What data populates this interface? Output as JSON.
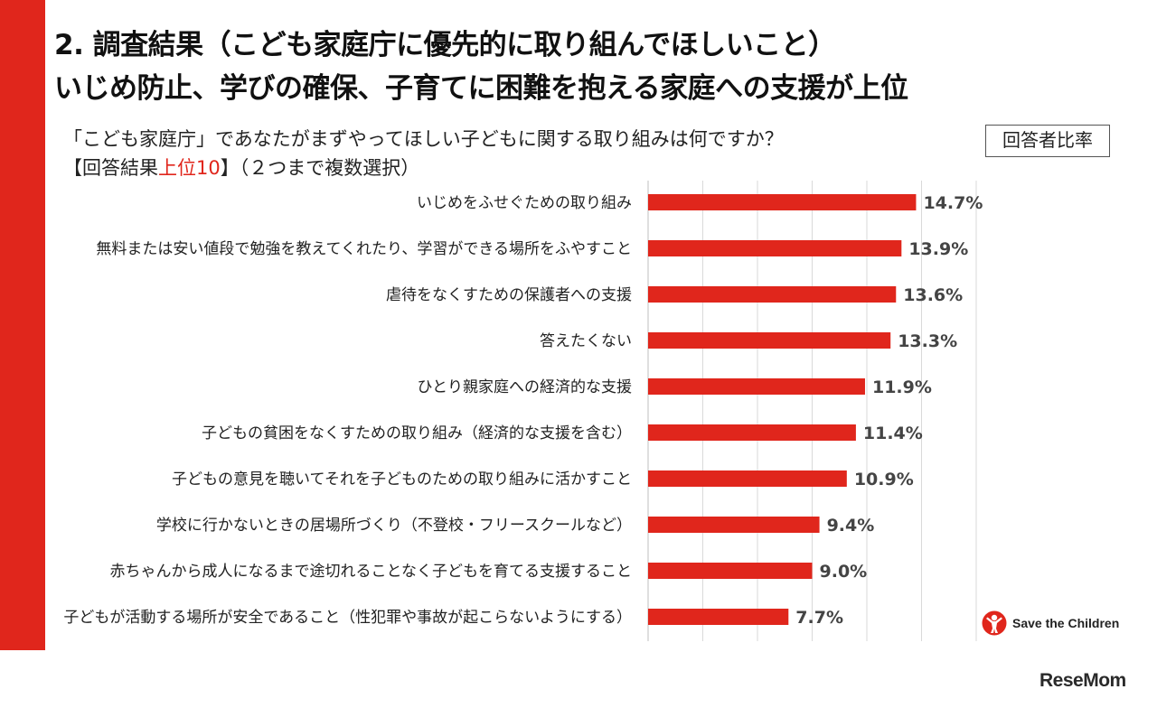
{
  "header": {
    "title_line1": "2. 調査結果（こども家庭庁に優先的に取り組んでほしいこと）",
    "title_line2": "いじめ防止、学びの確保、子育てに困難を抱える家庭への支援が上位",
    "question": "「こども家庭庁」であなたがまずやってほしい子どもに関する取り組みは何ですか？",
    "result_prefix": "【回答結果",
    "result_highlight": "上位10",
    "result_suffix": "】（２つまで複数選択）",
    "badge": "回答者比率"
  },
  "chart_data": {
    "type": "bar",
    "orientation": "horizontal",
    "categories": [
      "いじめをふせぐための取り組み",
      "無料または安い値段で勉強を教えてくれたり、学習ができる場所をふやすこと",
      "虐待をなくすための保護者への支援",
      "答えたくない",
      "ひとり親家庭への経済的な支援",
      "子どもの貧困をなくすための取り組み（経済的な支援を含む）",
      "子どもの意見を聴いてそれを子どものための取り組みに活かすこと",
      "学校に行かないときの居場所づくり（不登校・フリースクールなど）",
      "赤ちゃんから成人になるまで途切れることなく子どもを育てる支援すること",
      "子どもが活動する場所が安全であること（性犯罪や事故が起こらないようにする）"
    ],
    "values": [
      14.7,
      13.9,
      13.6,
      13.3,
      11.9,
      11.4,
      10.9,
      9.4,
      9.0,
      7.7
    ],
    "value_labels": [
      "14.7%",
      "13.9%",
      "13.6%",
      "13.3%",
      "11.9%",
      "11.4%",
      "10.9%",
      "9.4%",
      "9.0%",
      "7.7%"
    ],
    "xlim": [
      0,
      18
    ],
    "grid": true,
    "bar_color": "#e0261c"
  },
  "footer": {
    "brand": "Save the Children",
    "watermark": "ReseMom"
  },
  "colors": {
    "accent": "#e0261c",
    "grid": "#d9d9d9",
    "label": "#222222",
    "value": "#444444"
  }
}
